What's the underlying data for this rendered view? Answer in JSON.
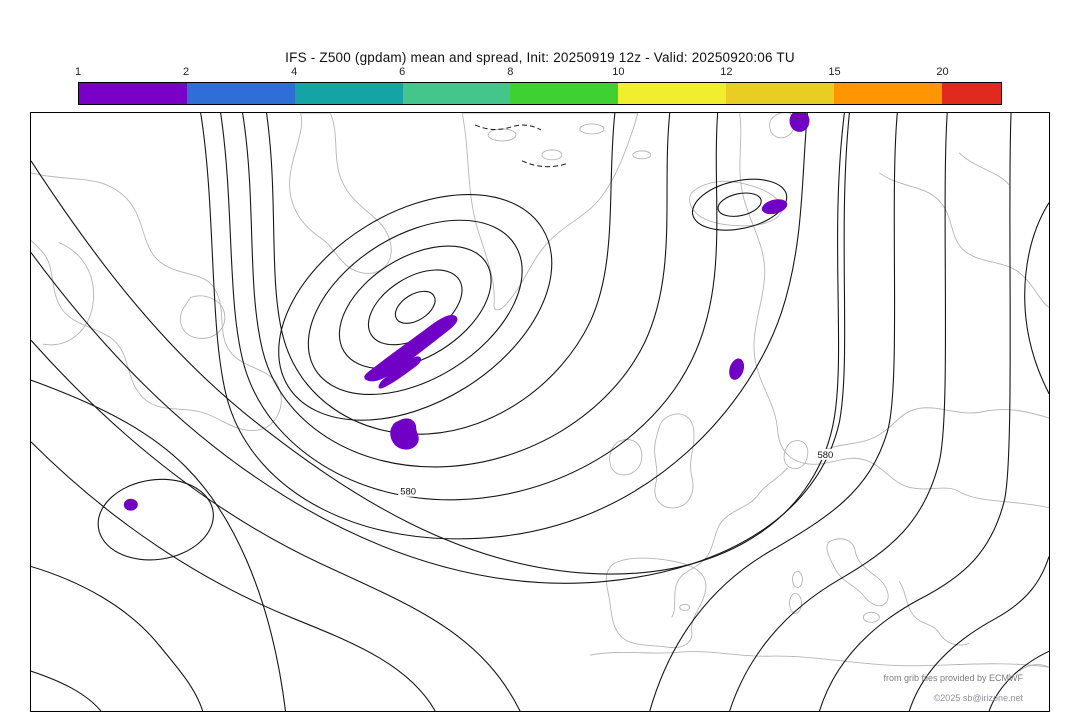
{
  "title": "IFS - Z500 (gpdam) mean and spread, Init: 20250919 12z - Valid: 20250920:06 TU",
  "colorbar": {
    "tick_labels": [
      "1",
      "2",
      "4",
      "6",
      "8",
      "10",
      "12",
      "15",
      "20"
    ],
    "segment_colors": [
      "#7a00c8",
      "#2e6ed6",
      "#16a3a3",
      "#43c58b",
      "#3fd131",
      "#f1ee2f",
      "#e9cd23",
      "#ff9500",
      "#e12a1e"
    ],
    "outline_color": "#000000"
  },
  "map": {
    "spread_fill_color": "#7100c6",
    "contour_labels": [
      {
        "text": "580"
      },
      {
        "text": "580"
      }
    ],
    "attribution_line1": "from grib files provided by ECMWF",
    "attribution_line2": "©2025 sb@irizone.net"
  },
  "chart_data": {
    "type": "heatmap",
    "title": "IFS - Z500 (gpdam) mean and spread, Init: 20250919 12z - Valid: 20250920:06 TU",
    "variable": "Z500 ensemble mean (black contours) and spread (shading)",
    "units": "gpdam",
    "init": "20250919 12z",
    "valid": "20250920:06 TU",
    "colorbar": {
      "ticks": [
        1,
        2,
        4,
        6,
        8,
        10,
        12,
        15,
        20
      ],
      "colors": [
        "#7a00c8",
        "#2e6ed6",
        "#16a3a3",
        "#43c58b",
        "#3fd131",
        "#f1ee2f",
        "#e9cd23",
        "#ff9500",
        "#e12a1e"
      ],
      "orientation": "horizontal",
      "position": "top"
    },
    "contour_labels_visible": [
      "580",
      "580"
    ],
    "shaded_regions": [
      {
        "value_range": "1-2",
        "color": "#7100c6",
        "location": "elongated band southeast of Greenland low center"
      },
      {
        "value_range": "1-2",
        "color": "#7100c6",
        "location": "small blob south of Greenland, mid-Atlantic"
      },
      {
        "value_range": "1-2",
        "color": "#7100c6",
        "location": "tiny spot subtropical Atlantic inside closed contour"
      },
      {
        "value_range": "1-2",
        "color": "#7100c6",
        "location": "small patch on Norwegian coast"
      },
      {
        "value_range": "1-2",
        "color": "#7100c6",
        "location": "small patch on Iceland"
      },
      {
        "value_range": "1-2",
        "color": "#7100c6",
        "location": "small patch at top edge near Svalbard"
      }
    ],
    "grid": false,
    "legend_position": "top colorbar"
  }
}
